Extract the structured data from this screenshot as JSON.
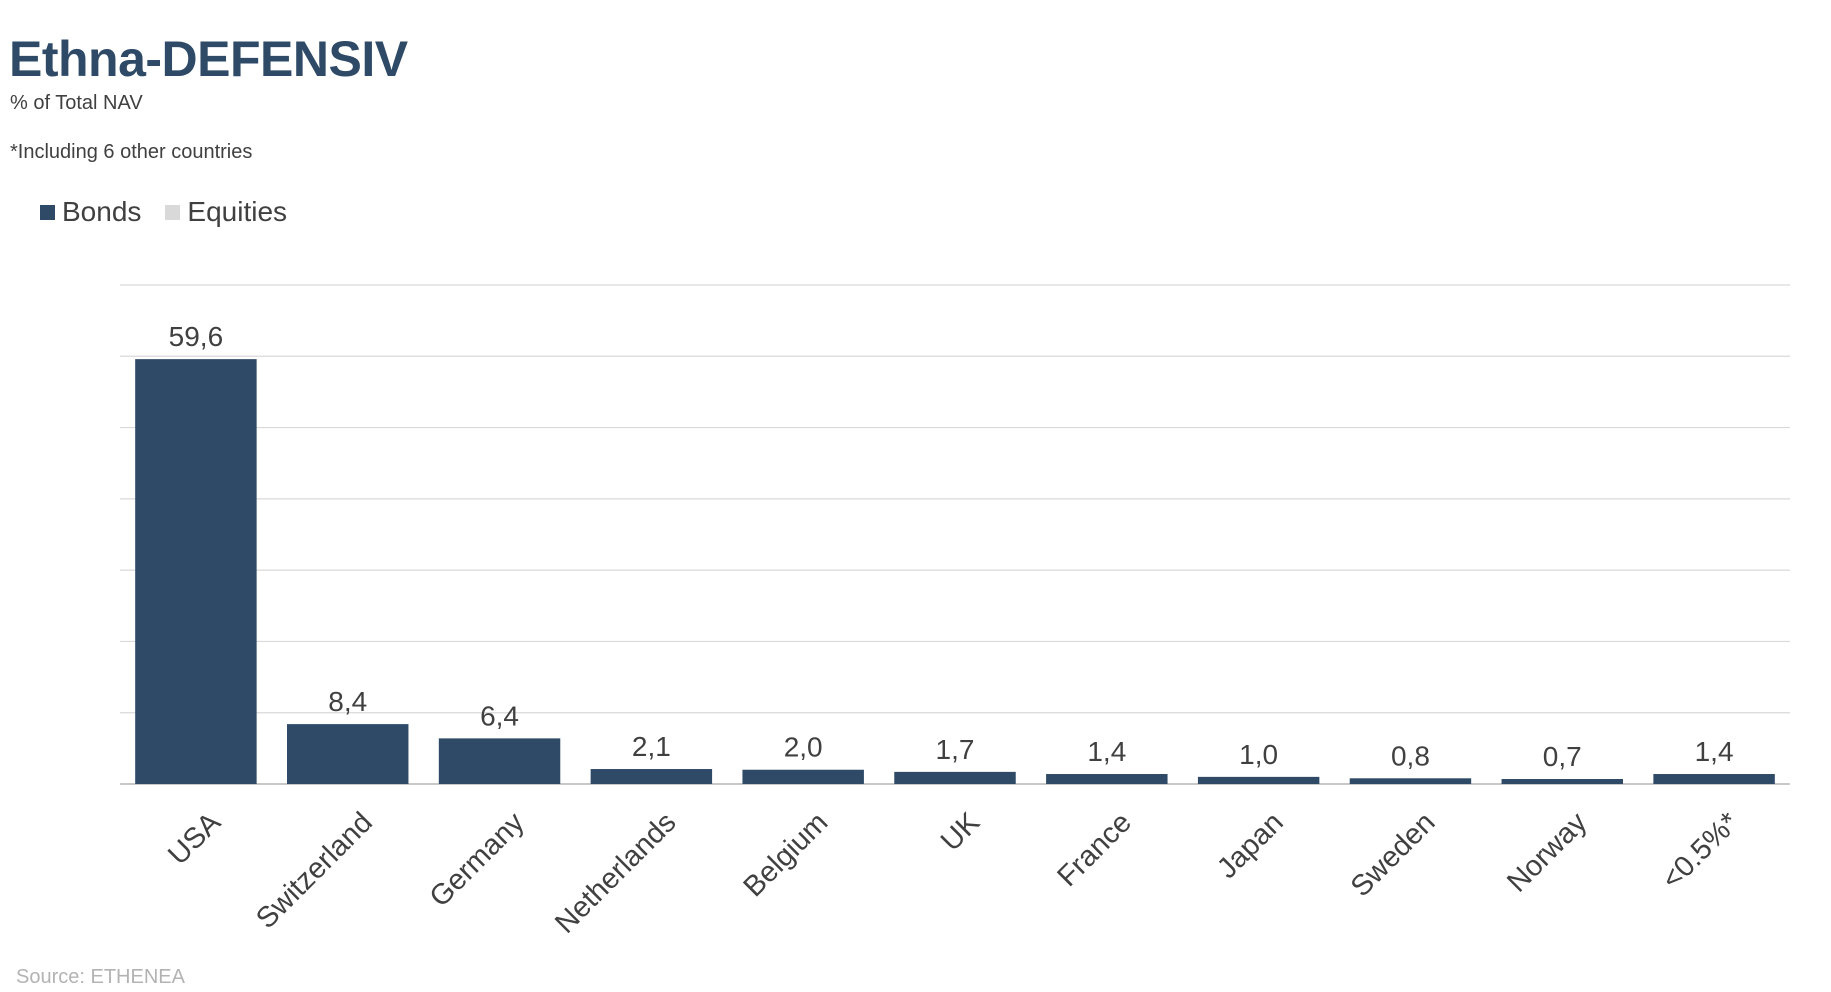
{
  "header": {
    "title": "Ethna-DEFENSIV",
    "subtitle": "% of Total NAV",
    "note": "*Including 6 other countries"
  },
  "legend": [
    {
      "label": "Bonds",
      "color": "#2e4a67"
    },
    {
      "label": "Equities",
      "color": "#d9d9d9"
    }
  ],
  "footer": {
    "source": "Source: ETHENEA"
  },
  "chart_data": {
    "type": "bar",
    "title": "Ethna-DEFENSIV",
    "subtitle": "% of Total NAV",
    "categories": [
      "USA",
      "Switzerland",
      "Germany",
      "Netherlands",
      "Belgium",
      "UK",
      "France",
      "Japan",
      "Sweden",
      "Norway",
      "<0.5%*"
    ],
    "series": [
      {
        "name": "Bonds",
        "color": "#2e4a67",
        "values": [
          59.6,
          8.4,
          6.4,
          2.1,
          2.0,
          1.7,
          1.4,
          1.0,
          0.8,
          0.7,
          1.4
        ]
      },
      {
        "name": "Equities",
        "color": "#d9d9d9",
        "values": [
          0,
          0,
          0,
          0,
          0,
          0,
          0,
          0,
          0,
          0,
          0
        ]
      }
    ],
    "data_labels": [
      "59,6",
      "8,4",
      "6,4",
      "2,1",
      "2,0",
      "1,7",
      "1,4",
      "1,0",
      "0,8",
      "0,7",
      "1,4"
    ],
    "ylim": [
      0,
      70
    ],
    "y_gridlines": 7,
    "grid": true,
    "legend_position": "top-left"
  }
}
